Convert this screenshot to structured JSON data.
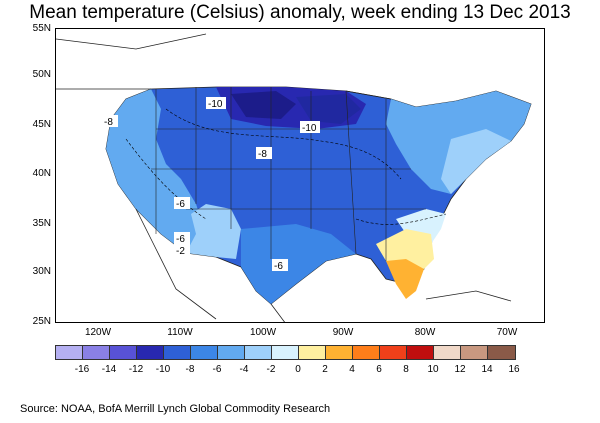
{
  "title": "Mean temperature (Celsius) anomaly, week ending 13 Dec 2013",
  "source": "Source: NOAA, BofA Merrill Lynch Global Commodity Research",
  "map": {
    "lat_labels": [
      "55N",
      "50N",
      "45N",
      "40N",
      "35N",
      "30N",
      "25N"
    ],
    "lon_labels": [
      "120W",
      "110W",
      "100W",
      "90W",
      "80W",
      "70W"
    ],
    "contour_labels": [
      "-10",
      "-10",
      "-8",
      "-8",
      "-6",
      "-6",
      "-2",
      "-6"
    ]
  },
  "legend": {
    "ticks": [
      "-16",
      "-14",
      "-12",
      "-10",
      "-8",
      "-6",
      "-4",
      "-2",
      "0",
      "2",
      "4",
      "6",
      "8",
      "10",
      "12",
      "14",
      "16"
    ],
    "colors": [
      "#b5b0f2",
      "#8a80e6",
      "#5852d6",
      "#2828b0",
      "#2e60d6",
      "#3c86e6",
      "#62aaf0",
      "#9ed0fa",
      "#d8f2fe",
      "#fff0a0",
      "#ffb232",
      "#ff7e1a",
      "#f0401a",
      "#c00e0e",
      "#f0d8c8",
      "#c89880",
      "#8a5a48"
    ]
  }
}
